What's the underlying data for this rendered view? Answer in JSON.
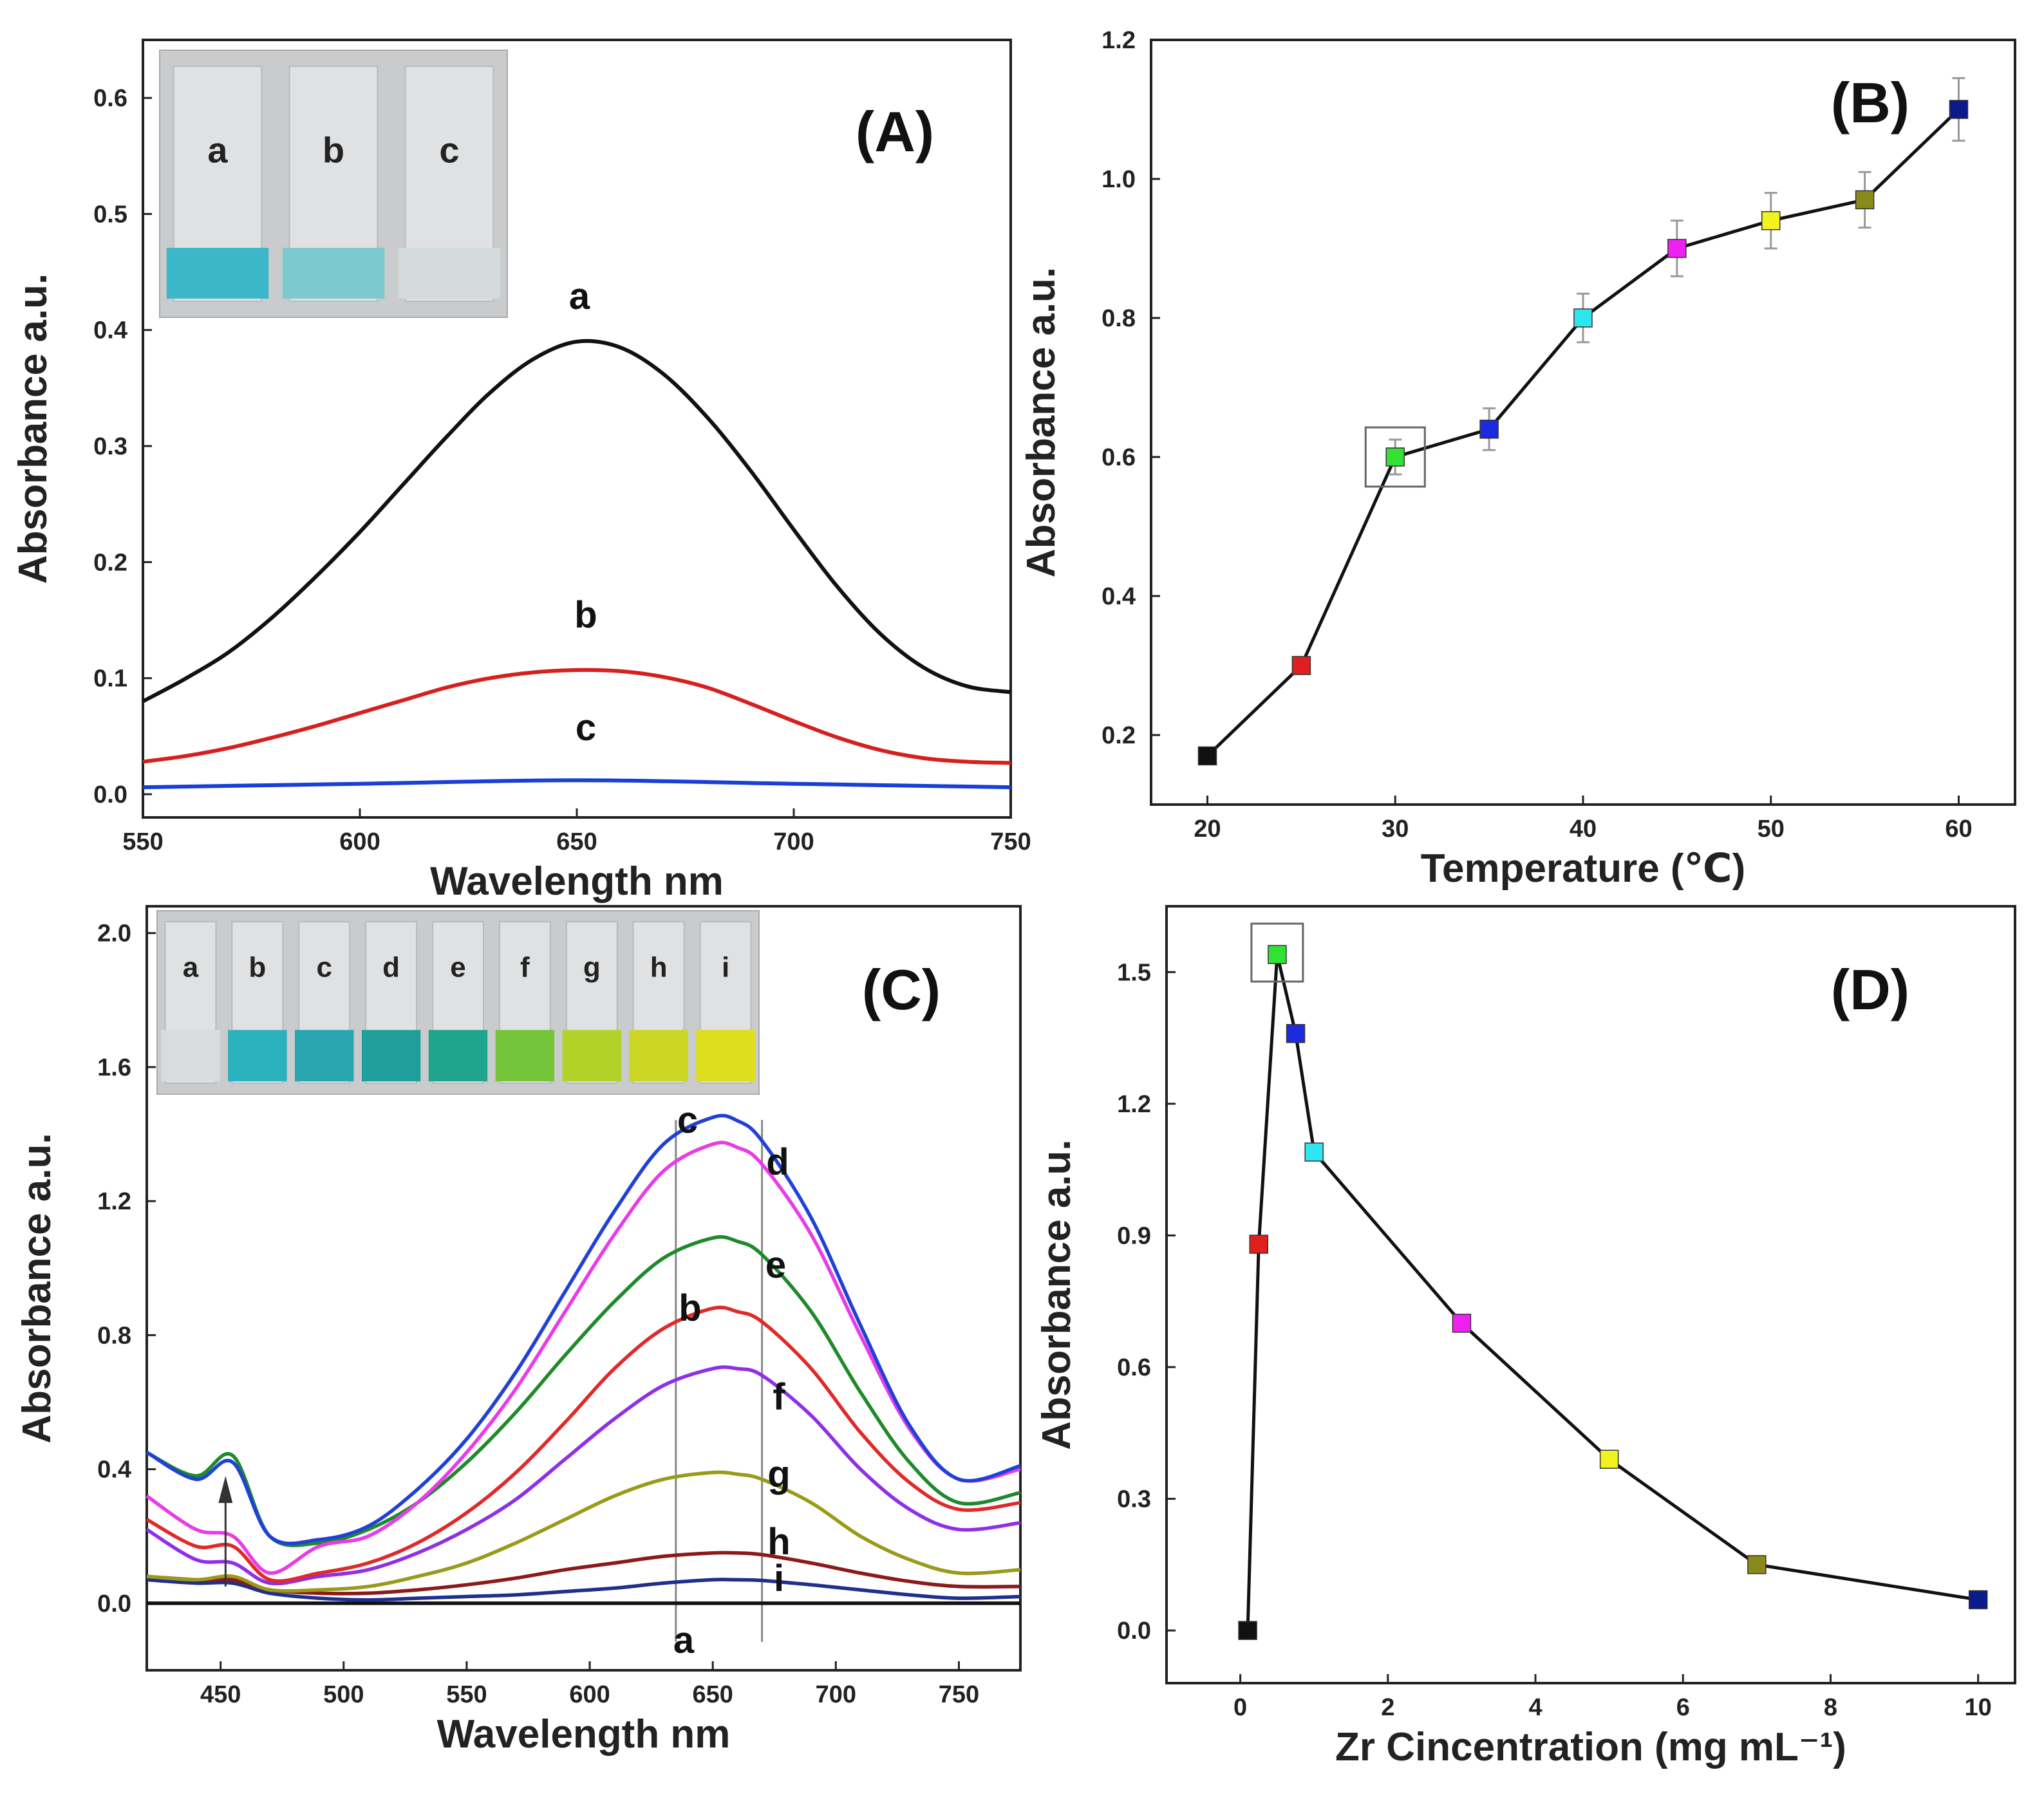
{
  "chart_data": [
    {
      "id": "A",
      "type": "line",
      "panel_label": "(A)",
      "xlabel": "Wavelength nm",
      "ylabel": "Absorbance a.u.",
      "xlim": [
        550,
        750
      ],
      "ylim": [
        -0.02,
        0.65
      ],
      "xticks": [
        "550",
        "600",
        "650",
        "700",
        "750"
      ],
      "yticks": [
        "0.0",
        "0.1",
        "0.2",
        "0.3",
        "0.4",
        "0.5",
        "0.6"
      ],
      "series": [
        {
          "name": "a",
          "color": "#111111",
          "x": [
            550,
            560,
            570,
            580,
            590,
            600,
            610,
            620,
            630,
            640,
            650,
            660,
            670,
            680,
            690,
            700,
            710,
            720,
            730,
            740,
            750
          ],
          "y": [
            0.08,
            0.1,
            0.123,
            0.153,
            0.188,
            0.226,
            0.267,
            0.308,
            0.346,
            0.375,
            0.39,
            0.385,
            0.362,
            0.325,
            0.279,
            0.228,
            0.179,
            0.138,
            0.109,
            0.093,
            0.088
          ]
        },
        {
          "name": "b",
          "color": "#d62020",
          "x": [
            550,
            560,
            570,
            580,
            590,
            600,
            610,
            620,
            630,
            640,
            650,
            660,
            670,
            680,
            690,
            700,
            710,
            720,
            730,
            740,
            750
          ],
          "y": [
            0.028,
            0.033,
            0.04,
            0.049,
            0.059,
            0.07,
            0.081,
            0.092,
            0.1,
            0.105,
            0.107,
            0.106,
            0.101,
            0.092,
            0.078,
            0.063,
            0.049,
            0.038,
            0.031,
            0.028,
            0.027
          ]
        },
        {
          "name": "c",
          "color": "#1a3fd6",
          "x": [
            550,
            600,
            650,
            700,
            750
          ],
          "y": [
            0.006,
            0.009,
            0.012,
            0.009,
            0.006
          ]
        }
      ],
      "curve_labels": [
        "a",
        "b",
        "c"
      ],
      "inset_vial_labels": [
        "a",
        "b",
        "c"
      ],
      "inset_vial_colors": [
        "#3bb7c9",
        "#7cc9cf",
        "#d4dadc"
      ]
    },
    {
      "id": "B",
      "type": "scatter",
      "panel_label": "(B)",
      "xlabel": "Temperature (℃)",
      "ylabel": "Absorbance a.u.",
      "xlim": [
        17,
        63
      ],
      "ylim": [
        0.1,
        1.2
      ],
      "xticks": [
        "20",
        "30",
        "40",
        "50",
        "60"
      ],
      "yticks": [
        "0.2",
        "0.4",
        "0.6",
        "0.8",
        "1.0",
        "1.2"
      ],
      "x": [
        20,
        25,
        30,
        35,
        40,
        45,
        50,
        55,
        60
      ],
      "y": [
        0.17,
        0.3,
        0.6,
        0.64,
        0.8,
        0.9,
        0.94,
        0.97,
        1.1
      ],
      "yerr": [
        0,
        0,
        0.025,
        0.03,
        0.035,
        0.04,
        0.04,
        0.04,
        0.045
      ],
      "colors": [
        "#111111",
        "#e01f1f",
        "#33e033",
        "#1c2be0",
        "#2ee6f0",
        "#f020f0",
        "#f2f21e",
        "#8a8a1c",
        "#0b1a8c"
      ],
      "highlight_index": 2
    },
    {
      "id": "C",
      "type": "line",
      "panel_label": "(C)",
      "xlabel": "Wavelength nm",
      "ylabel": "Absorbance a.u.",
      "xlim": [
        420,
        775
      ],
      "ylim": [
        -0.2,
        2.08
      ],
      "xticks": [
        "450",
        "500",
        "550",
        "600",
        "650",
        "700",
        "750"
      ],
      "yticks": [
        "0.0",
        "0.4",
        "0.8",
        "1.2",
        "1.6",
        "2.0"
      ],
      "x": [
        420,
        440,
        455,
        470,
        490,
        510,
        530,
        550,
        570,
        590,
        610,
        630,
        650,
        660,
        670,
        690,
        710,
        730,
        750,
        775
      ],
      "series": [
        {
          "name": "a",
          "color": "#111111",
          "y": [
            0,
            0,
            0,
            0,
            0,
            0,
            0,
            0,
            0,
            0,
            0,
            0,
            0,
            0,
            0,
            0,
            0,
            0,
            0,
            0
          ]
        },
        {
          "name": "i",
          "color": "#1f2f8c",
          "y": [
            0.07,
            0.06,
            0.06,
            0.03,
            0.015,
            0.01,
            0.015,
            0.02,
            0.025,
            0.035,
            0.045,
            0.06,
            0.07,
            0.07,
            0.068,
            0.055,
            0.04,
            0.025,
            0.015,
            0.02
          ]
        },
        {
          "name": "h",
          "color": "#8b1a1a",
          "y": [
            0.08,
            0.07,
            0.07,
            0.04,
            0.03,
            0.03,
            0.04,
            0.055,
            0.075,
            0.1,
            0.12,
            0.14,
            0.15,
            0.15,
            0.145,
            0.12,
            0.09,
            0.065,
            0.05,
            0.05
          ]
        },
        {
          "name": "g",
          "color": "#9a9a1a",
          "y": [
            0.08,
            0.07,
            0.08,
            0.04,
            0.04,
            0.05,
            0.08,
            0.12,
            0.18,
            0.25,
            0.32,
            0.37,
            0.39,
            0.385,
            0.37,
            0.3,
            0.2,
            0.13,
            0.09,
            0.1
          ]
        },
        {
          "name": "f",
          "color": "#8f2fe8",
          "y": [
            0.22,
            0.13,
            0.12,
            0.06,
            0.08,
            0.1,
            0.15,
            0.22,
            0.31,
            0.43,
            0.55,
            0.65,
            0.7,
            0.7,
            0.68,
            0.56,
            0.4,
            0.28,
            0.22,
            0.24
          ]
        },
        {
          "name": "b",
          "color": "#e02a2a",
          "y": [
            0.25,
            0.17,
            0.17,
            0.07,
            0.09,
            0.12,
            0.18,
            0.27,
            0.39,
            0.54,
            0.7,
            0.82,
            0.88,
            0.87,
            0.84,
            0.7,
            0.51,
            0.36,
            0.28,
            0.3
          ]
        },
        {
          "name": "e",
          "color": "#1f8a2a",
          "y": [
            0.45,
            0.38,
            0.44,
            0.2,
            0.18,
            0.22,
            0.3,
            0.42,
            0.57,
            0.74,
            0.9,
            1.03,
            1.09,
            1.08,
            1.04,
            0.87,
            0.63,
            0.42,
            0.3,
            0.33
          ]
        },
        {
          "name": "d",
          "color": "#e83ce8",
          "y": [
            0.32,
            0.22,
            0.2,
            0.09,
            0.17,
            0.2,
            0.3,
            0.45,
            0.64,
            0.87,
            1.1,
            1.29,
            1.37,
            1.36,
            1.31,
            1.1,
            0.8,
            0.52,
            0.37,
            0.4
          ]
        },
        {
          "name": "c",
          "color": "#2040d8",
          "y": [
            0.45,
            0.37,
            0.42,
            0.2,
            0.19,
            0.23,
            0.34,
            0.49,
            0.69,
            0.93,
            1.17,
            1.37,
            1.45,
            1.44,
            1.38,
            1.15,
            0.83,
            0.53,
            0.37,
            0.41
          ]
        }
      ],
      "curve_labels": [
        "c",
        "d",
        "e",
        "b",
        "f",
        "g",
        "h",
        "i",
        "a"
      ],
      "inset_vial_labels": [
        "a",
        "b",
        "c",
        "d",
        "e",
        "f",
        "g",
        "h",
        "i"
      ],
      "inset_vial_colors": [
        "#d8dcdc",
        "#2ab2bf",
        "#27a6b0",
        "#1f9f9a",
        "#1fa58e",
        "#74c53a",
        "#b2d22a",
        "#ccd624",
        "#dede1f"
      ]
    },
    {
      "id": "D",
      "type": "scatter",
      "panel_label": "(D)",
      "xlabel": "Zr Cincentration (mg mL⁻¹)",
      "ylabel": "Absorbance a.u.",
      "xlim": [
        -1,
        10.5
      ],
      "ylim": [
        -0.12,
        1.65
      ],
      "xticks": [
        "0",
        "2",
        "4",
        "6",
        "8",
        "10"
      ],
      "yticks": [
        "0.0",
        "0.3",
        "0.6",
        "0.9",
        "1.2",
        "1.5"
      ],
      "x": [
        0.1,
        0.25,
        0.5,
        0.75,
        1,
        3,
        5,
        7,
        10
      ],
      "y": [
        0.0,
        0.88,
        1.54,
        1.36,
        1.09,
        0.7,
        0.39,
        0.15,
        0.07
      ],
      "colors": [
        "#111111",
        "#e01f1f",
        "#33e033",
        "#1c2be0",
        "#2ee6f0",
        "#f020f0",
        "#f2f21e",
        "#8a8a1c",
        "#0b1a8c"
      ],
      "highlight_index": 2
    }
  ]
}
